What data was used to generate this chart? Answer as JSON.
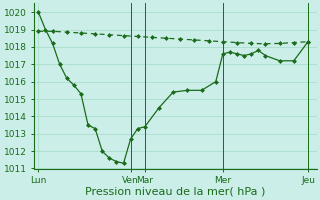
{
  "background_color": "#cceee8",
  "grid_color": "#aaddcc",
  "line_color": "#1a6b1a",
  "marker_color": "#1a6b1a",
  "xlabel": "Pression niveau de la mer( hPa )",
  "ylim": [
    1011,
    1020.5
  ],
  "yticks": [
    1011,
    1012,
    1013,
    1014,
    1015,
    1016,
    1017,
    1018,
    1019,
    1020
  ],
  "xtick_labels": [
    "Lun",
    "Ven",
    "Mar",
    "Mer",
    "Jeu"
  ],
  "xtick_positions": [
    0.0,
    3.25,
    3.75,
    6.5,
    9.5
  ],
  "vlines": [
    3.25,
    3.75,
    6.5,
    9.5
  ],
  "line1_x": [
    0.0,
    0.25,
    0.5,
    0.75,
    1.0,
    1.25,
    1.5,
    1.75,
    2.0,
    2.25,
    2.5,
    2.75,
    3.0,
    3.25,
    3.5,
    3.75,
    4.25,
    4.75,
    5.25,
    5.75,
    6.25,
    6.5,
    6.75,
    7.0,
    7.25,
    7.5,
    7.75,
    8.0,
    8.5,
    9.0,
    9.5
  ],
  "line1_y": [
    1020.0,
    1019.0,
    1018.2,
    1017.0,
    1016.2,
    1015.8,
    1015.3,
    1013.5,
    1013.3,
    1012.0,
    1011.6,
    1011.4,
    1011.3,
    1012.7,
    1013.3,
    1013.4,
    1014.5,
    1015.4,
    1015.5,
    1015.5,
    1016.0,
    1017.6,
    1017.7,
    1017.6,
    1017.5,
    1017.6,
    1017.8,
    1017.5,
    1017.2,
    1017.2,
    1018.3
  ],
  "line2_x": [
    0.0,
    0.5,
    1.0,
    1.5,
    2.0,
    2.5,
    3.0,
    3.5,
    4.0,
    4.5,
    5.0,
    5.5,
    6.0,
    6.5,
    7.0,
    7.5,
    8.0,
    8.5,
    9.0,
    9.5
  ],
  "line2_y": [
    1018.9,
    1018.9,
    1018.85,
    1018.8,
    1018.75,
    1018.7,
    1018.65,
    1018.6,
    1018.55,
    1018.5,
    1018.45,
    1018.4,
    1018.35,
    1018.3,
    1018.25,
    1018.2,
    1018.18,
    1018.2,
    1018.25,
    1018.3
  ],
  "xlabel_fontsize": 8,
  "tick_fontsize": 6.5,
  "figsize": [
    3.2,
    2.0
  ],
  "dpi": 100
}
